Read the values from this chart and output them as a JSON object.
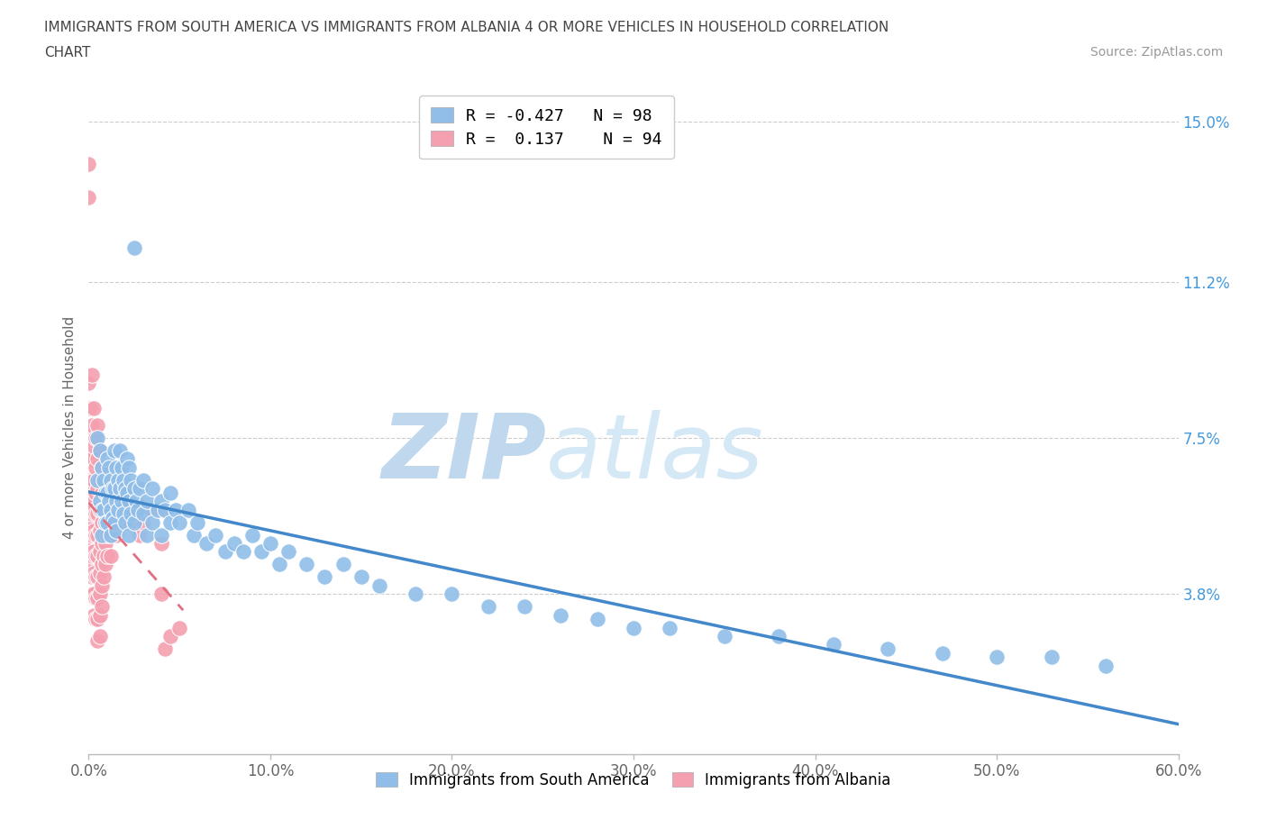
{
  "title_line1": "IMMIGRANTS FROM SOUTH AMERICA VS IMMIGRANTS FROM ALBANIA 4 OR MORE VEHICLES IN HOUSEHOLD CORRELATION",
  "title_line2": "CHART",
  "source_text": "Source: ZipAtlas.com",
  "ylabel": "4 or more Vehicles in Household",
  "xmin": 0.0,
  "xmax": 0.6,
  "ymin": 0.0,
  "ymax": 0.155,
  "xtick_labels": [
    "0.0%",
    "10.0%",
    "20.0%",
    "30.0%",
    "40.0%",
    "50.0%",
    "60.0%"
  ],
  "xtick_values": [
    0.0,
    0.1,
    0.2,
    0.3,
    0.4,
    0.5,
    0.6
  ],
  "ytick_labels": [
    "3.8%",
    "7.5%",
    "11.2%",
    "15.0%"
  ],
  "ytick_values": [
    0.038,
    0.075,
    0.112,
    0.15
  ],
  "r_south_america": -0.427,
  "n_south_america": 98,
  "r_albania": 0.137,
  "n_albania": 94,
  "south_america_color": "#90BEE8",
  "albania_color": "#F4A0B0",
  "south_america_line_color": "#4488CC",
  "albania_line_color": "#E07080",
  "watermark_zip_color": "#C8DCF0",
  "watermark_atlas_color": "#D8EAF8",
  "south_america_scatter": [
    [
      0.005,
      0.075
    ],
    [
      0.005,
      0.065
    ],
    [
      0.006,
      0.072
    ],
    [
      0.006,
      0.06
    ],
    [
      0.007,
      0.068
    ],
    [
      0.007,
      0.058
    ],
    [
      0.007,
      0.052
    ],
    [
      0.008,
      0.065
    ],
    [
      0.008,
      0.058
    ],
    [
      0.009,
      0.062
    ],
    [
      0.009,
      0.055
    ],
    [
      0.01,
      0.07
    ],
    [
      0.01,
      0.062
    ],
    [
      0.01,
      0.055
    ],
    [
      0.011,
      0.068
    ],
    [
      0.011,
      0.06
    ],
    [
      0.012,
      0.065
    ],
    [
      0.012,
      0.058
    ],
    [
      0.012,
      0.052
    ],
    [
      0.013,
      0.063
    ],
    [
      0.013,
      0.056
    ],
    [
      0.014,
      0.072
    ],
    [
      0.014,
      0.063
    ],
    [
      0.014,
      0.055
    ],
    [
      0.015,
      0.068
    ],
    [
      0.015,
      0.06
    ],
    [
      0.015,
      0.053
    ],
    [
      0.016,
      0.065
    ],
    [
      0.016,
      0.058
    ],
    [
      0.017,
      0.072
    ],
    [
      0.017,
      0.063
    ],
    [
      0.018,
      0.068
    ],
    [
      0.018,
      0.06
    ],
    [
      0.019,
      0.065
    ],
    [
      0.019,
      0.057
    ],
    [
      0.02,
      0.063
    ],
    [
      0.02,
      0.055
    ],
    [
      0.021,
      0.07
    ],
    [
      0.021,
      0.062
    ],
    [
      0.022,
      0.068
    ],
    [
      0.022,
      0.06
    ],
    [
      0.022,
      0.052
    ],
    [
      0.023,
      0.065
    ],
    [
      0.023,
      0.057
    ],
    [
      0.025,
      0.12
    ],
    [
      0.025,
      0.063
    ],
    [
      0.025,
      0.055
    ],
    [
      0.026,
      0.06
    ],
    [
      0.027,
      0.058
    ],
    [
      0.028,
      0.063
    ],
    [
      0.03,
      0.065
    ],
    [
      0.03,
      0.057
    ],
    [
      0.032,
      0.06
    ],
    [
      0.032,
      0.052
    ],
    [
      0.035,
      0.063
    ],
    [
      0.035,
      0.055
    ],
    [
      0.038,
      0.058
    ],
    [
      0.04,
      0.06
    ],
    [
      0.04,
      0.052
    ],
    [
      0.042,
      0.058
    ],
    [
      0.045,
      0.062
    ],
    [
      0.045,
      0.055
    ],
    [
      0.048,
      0.058
    ],
    [
      0.05,
      0.055
    ],
    [
      0.055,
      0.058
    ],
    [
      0.058,
      0.052
    ],
    [
      0.06,
      0.055
    ],
    [
      0.065,
      0.05
    ],
    [
      0.07,
      0.052
    ],
    [
      0.075,
      0.048
    ],
    [
      0.08,
      0.05
    ],
    [
      0.085,
      0.048
    ],
    [
      0.09,
      0.052
    ],
    [
      0.095,
      0.048
    ],
    [
      0.1,
      0.05
    ],
    [
      0.105,
      0.045
    ],
    [
      0.11,
      0.048
    ],
    [
      0.12,
      0.045
    ],
    [
      0.13,
      0.042
    ],
    [
      0.14,
      0.045
    ],
    [
      0.15,
      0.042
    ],
    [
      0.16,
      0.04
    ],
    [
      0.18,
      0.038
    ],
    [
      0.2,
      0.038
    ],
    [
      0.22,
      0.035
    ],
    [
      0.24,
      0.035
    ],
    [
      0.26,
      0.033
    ],
    [
      0.28,
      0.032
    ],
    [
      0.3,
      0.03
    ],
    [
      0.32,
      0.03
    ],
    [
      0.35,
      0.028
    ],
    [
      0.38,
      0.028
    ],
    [
      0.41,
      0.026
    ],
    [
      0.44,
      0.025
    ],
    [
      0.47,
      0.024
    ],
    [
      0.5,
      0.023
    ],
    [
      0.53,
      0.023
    ],
    [
      0.56,
      0.021
    ]
  ],
  "albania_scatter": [
    [
      0.0,
      0.14
    ],
    [
      0.0,
      0.132
    ],
    [
      0.0,
      0.088
    ],
    [
      0.001,
      0.082
    ],
    [
      0.001,
      0.075
    ],
    [
      0.001,
      0.07
    ],
    [
      0.001,
      0.065
    ],
    [
      0.001,
      0.06
    ],
    [
      0.001,
      0.055
    ],
    [
      0.001,
      0.05
    ],
    [
      0.001,
      0.045
    ],
    [
      0.002,
      0.09
    ],
    [
      0.002,
      0.078
    ],
    [
      0.002,
      0.07
    ],
    [
      0.002,
      0.063
    ],
    [
      0.002,
      0.057
    ],
    [
      0.002,
      0.052
    ],
    [
      0.002,
      0.047
    ],
    [
      0.002,
      0.042
    ],
    [
      0.002,
      0.038
    ],
    [
      0.003,
      0.082
    ],
    [
      0.003,
      0.073
    ],
    [
      0.003,
      0.065
    ],
    [
      0.003,
      0.058
    ],
    [
      0.003,
      0.053
    ],
    [
      0.003,
      0.048
    ],
    [
      0.003,
      0.043
    ],
    [
      0.003,
      0.038
    ],
    [
      0.003,
      0.033
    ],
    [
      0.004,
      0.075
    ],
    [
      0.004,
      0.068
    ],
    [
      0.004,
      0.062
    ],
    [
      0.004,
      0.057
    ],
    [
      0.004,
      0.052
    ],
    [
      0.004,
      0.047
    ],
    [
      0.004,
      0.042
    ],
    [
      0.004,
      0.037
    ],
    [
      0.004,
      0.032
    ],
    [
      0.005,
      0.078
    ],
    [
      0.005,
      0.07
    ],
    [
      0.005,
      0.063
    ],
    [
      0.005,
      0.057
    ],
    [
      0.005,
      0.052
    ],
    [
      0.005,
      0.047
    ],
    [
      0.005,
      0.042
    ],
    [
      0.005,
      0.037
    ],
    [
      0.005,
      0.032
    ],
    [
      0.005,
      0.027
    ],
    [
      0.006,
      0.072
    ],
    [
      0.006,
      0.065
    ],
    [
      0.006,
      0.058
    ],
    [
      0.006,
      0.053
    ],
    [
      0.006,
      0.048
    ],
    [
      0.006,
      0.043
    ],
    [
      0.006,
      0.038
    ],
    [
      0.006,
      0.033
    ],
    [
      0.006,
      0.028
    ],
    [
      0.007,
      0.068
    ],
    [
      0.007,
      0.062
    ],
    [
      0.007,
      0.055
    ],
    [
      0.007,
      0.05
    ],
    [
      0.007,
      0.045
    ],
    [
      0.007,
      0.04
    ],
    [
      0.007,
      0.035
    ],
    [
      0.008,
      0.065
    ],
    [
      0.008,
      0.058
    ],
    [
      0.008,
      0.052
    ],
    [
      0.008,
      0.047
    ],
    [
      0.008,
      0.042
    ],
    [
      0.009,
      0.062
    ],
    [
      0.009,
      0.055
    ],
    [
      0.009,
      0.05
    ],
    [
      0.009,
      0.045
    ],
    [
      0.01,
      0.058
    ],
    [
      0.01,
      0.052
    ],
    [
      0.01,
      0.047
    ],
    [
      0.012,
      0.06
    ],
    [
      0.012,
      0.053
    ],
    [
      0.012,
      0.047
    ],
    [
      0.015,
      0.058
    ],
    [
      0.015,
      0.052
    ],
    [
      0.018,
      0.055
    ],
    [
      0.02,
      0.06
    ],
    [
      0.022,
      0.055
    ],
    [
      0.025,
      0.058
    ],
    [
      0.028,
      0.052
    ],
    [
      0.03,
      0.055
    ],
    [
      0.035,
      0.058
    ],
    [
      0.04,
      0.058
    ],
    [
      0.04,
      0.05
    ],
    [
      0.04,
      0.038
    ],
    [
      0.042,
      0.025
    ],
    [
      0.045,
      0.028
    ],
    [
      0.05,
      0.03
    ]
  ]
}
